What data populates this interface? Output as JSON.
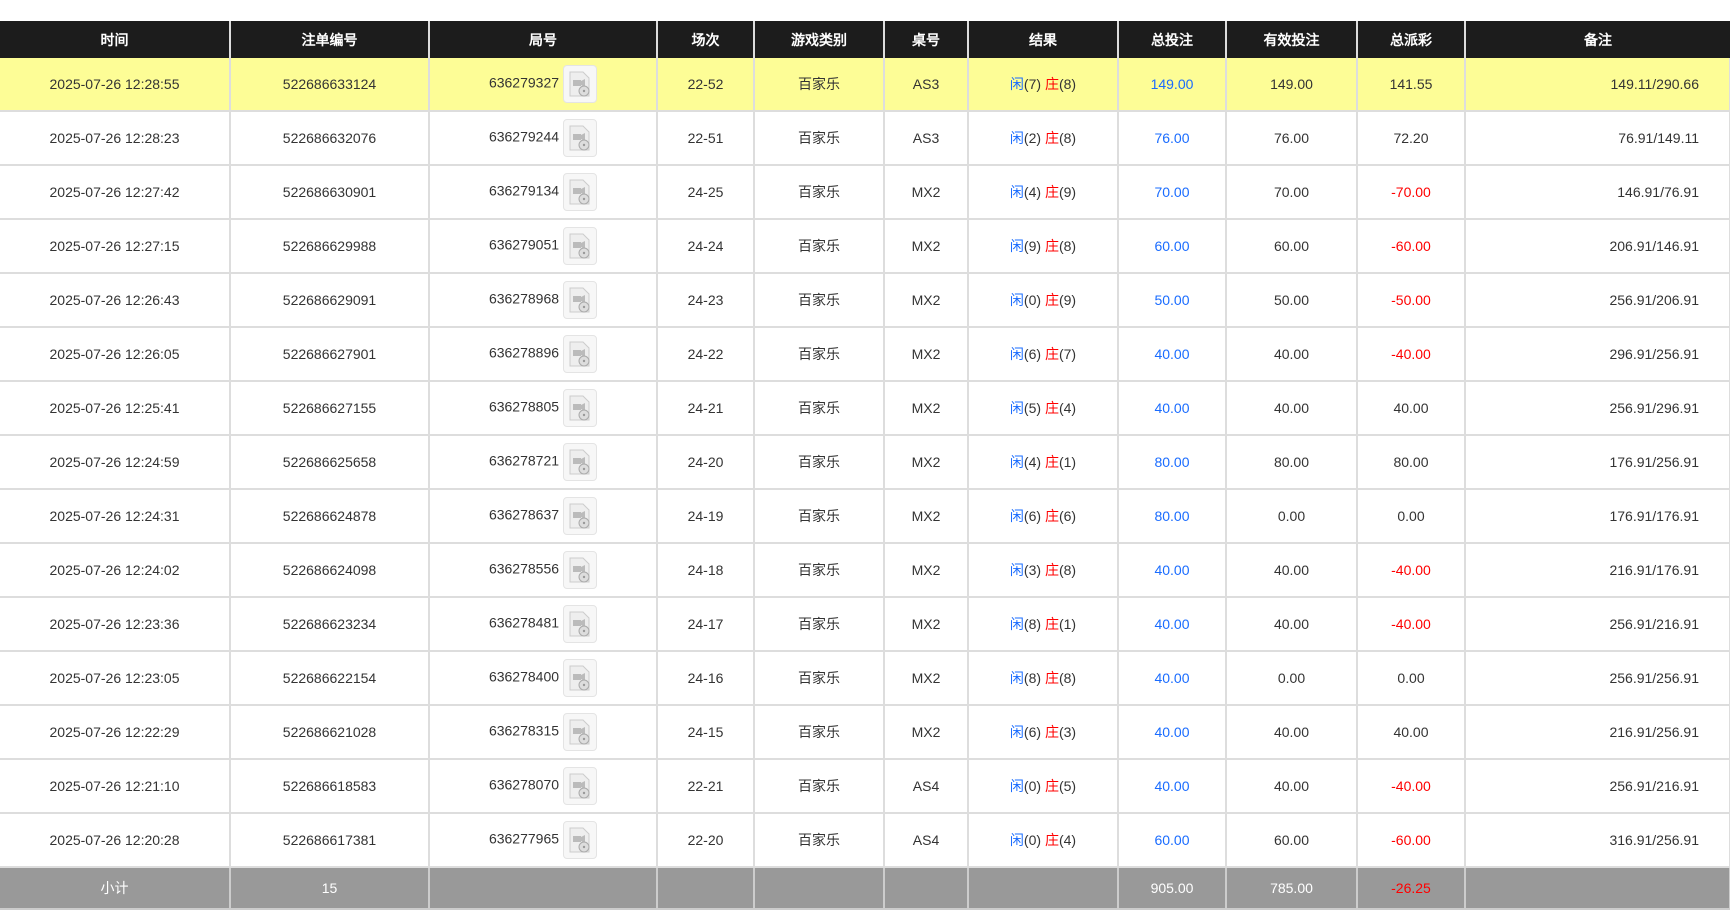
{
  "headers": [
    "时间",
    "注单编号",
    "局号",
    "场次",
    "游戏类别",
    "桌号",
    "结果",
    "总投注",
    "有效投注",
    "总派彩",
    "备注"
  ],
  "colors": {
    "header_bg": "#1c1c1c",
    "highlight_row": "#fdfd96",
    "blue": "#1a6cff",
    "red": "#ff0000",
    "subtotal_bg": "#999999"
  },
  "result_labels": {
    "player": "闲",
    "banker": "庄"
  },
  "rows": [
    {
      "time": "2025-07-26 12:28:55",
      "bet_id": "522686633124",
      "round": "636279327",
      "shoe": "22-52",
      "game": "百家乐",
      "table": "AS3",
      "player": "(7)",
      "banker": "(8)",
      "total_bet": "149.00",
      "valid_bet": "149.00",
      "payout": "141.55",
      "payout_negative": false,
      "note": "149.11/290.66",
      "highlighted": true
    },
    {
      "time": "2025-07-26 12:28:23",
      "bet_id": "522686632076",
      "round": "636279244",
      "shoe": "22-51",
      "game": "百家乐",
      "table": "AS3",
      "player": "(2)",
      "banker": "(8)",
      "total_bet": "76.00",
      "valid_bet": "76.00",
      "payout": "72.20",
      "payout_negative": false,
      "note": "76.91/149.11"
    },
    {
      "time": "2025-07-26 12:27:42",
      "bet_id": "522686630901",
      "round": "636279134",
      "shoe": "24-25",
      "game": "百家乐",
      "table": "MX2",
      "player": "(4)",
      "banker": "(9)",
      "total_bet": "70.00",
      "valid_bet": "70.00",
      "payout": "-70.00",
      "payout_negative": true,
      "note": "146.91/76.91"
    },
    {
      "time": "2025-07-26 12:27:15",
      "bet_id": "522686629988",
      "round": "636279051",
      "shoe": "24-24",
      "game": "百家乐",
      "table": "MX2",
      "player": "(9)",
      "banker": "(8)",
      "total_bet": "60.00",
      "valid_bet": "60.00",
      "payout": "-60.00",
      "payout_negative": true,
      "note": "206.91/146.91"
    },
    {
      "time": "2025-07-26 12:26:43",
      "bet_id": "522686629091",
      "round": "636278968",
      "shoe": "24-23",
      "game": "百家乐",
      "table": "MX2",
      "player": "(0)",
      "banker": "(9)",
      "total_bet": "50.00",
      "valid_bet": "50.00",
      "payout": "-50.00",
      "payout_negative": true,
      "note": "256.91/206.91"
    },
    {
      "time": "2025-07-26 12:26:05",
      "bet_id": "522686627901",
      "round": "636278896",
      "shoe": "24-22",
      "game": "百家乐",
      "table": "MX2",
      "player": "(6)",
      "banker": "(7)",
      "total_bet": "40.00",
      "valid_bet": "40.00",
      "payout": "-40.00",
      "payout_negative": true,
      "note": "296.91/256.91"
    },
    {
      "time": "2025-07-26 12:25:41",
      "bet_id": "522686627155",
      "round": "636278805",
      "shoe": "24-21",
      "game": "百家乐",
      "table": "MX2",
      "player": "(5)",
      "banker": "(4)",
      "total_bet": "40.00",
      "valid_bet": "40.00",
      "payout": "40.00",
      "payout_negative": false,
      "note": "256.91/296.91"
    },
    {
      "time": "2025-07-26 12:24:59",
      "bet_id": "522686625658",
      "round": "636278721",
      "shoe": "24-20",
      "game": "百家乐",
      "table": "MX2",
      "player": "(4)",
      "banker": "(1)",
      "total_bet": "80.00",
      "valid_bet": "80.00",
      "payout": "80.00",
      "payout_negative": false,
      "note": "176.91/256.91"
    },
    {
      "time": "2025-07-26 12:24:31",
      "bet_id": "522686624878",
      "round": "636278637",
      "shoe": "24-19",
      "game": "百家乐",
      "table": "MX2",
      "player": "(6)",
      "banker": "(6)",
      "total_bet": "80.00",
      "valid_bet": "0.00",
      "payout": "0.00",
      "payout_negative": false,
      "note": "176.91/176.91"
    },
    {
      "time": "2025-07-26 12:24:02",
      "bet_id": "522686624098",
      "round": "636278556",
      "shoe": "24-18",
      "game": "百家乐",
      "table": "MX2",
      "player": "(3)",
      "banker": "(8)",
      "total_bet": "40.00",
      "valid_bet": "40.00",
      "payout": "-40.00",
      "payout_negative": true,
      "note": "216.91/176.91"
    },
    {
      "time": "2025-07-26 12:23:36",
      "bet_id": "522686623234",
      "round": "636278481",
      "shoe": "24-17",
      "game": "百家乐",
      "table": "MX2",
      "player": "(8)",
      "banker": "(1)",
      "total_bet": "40.00",
      "valid_bet": "40.00",
      "payout": "-40.00",
      "payout_negative": true,
      "note": "256.91/216.91"
    },
    {
      "time": "2025-07-26 12:23:05",
      "bet_id": "522686622154",
      "round": "636278400",
      "shoe": "24-16",
      "game": "百家乐",
      "table": "MX2",
      "player": "(8)",
      "banker": "(8)",
      "total_bet": "40.00",
      "valid_bet": "0.00",
      "payout": "0.00",
      "payout_negative": false,
      "note": "256.91/256.91"
    },
    {
      "time": "2025-07-26 12:22:29",
      "bet_id": "522686621028",
      "round": "636278315",
      "shoe": "24-15",
      "game": "百家乐",
      "table": "MX2",
      "player": "(6)",
      "banker": "(3)",
      "total_bet": "40.00",
      "valid_bet": "40.00",
      "payout": "40.00",
      "payout_negative": false,
      "note": "216.91/256.91"
    },
    {
      "time": "2025-07-26 12:21:10",
      "bet_id": "522686618583",
      "round": "636278070",
      "shoe": "22-21",
      "game": "百家乐",
      "table": "AS4",
      "player": "(0)",
      "banker": "(5)",
      "total_bet": "40.00",
      "valid_bet": "40.00",
      "payout": "-40.00",
      "payout_negative": true,
      "note": "256.91/216.91"
    },
    {
      "time": "2025-07-26 12:20:28",
      "bet_id": "522686617381",
      "round": "636277965",
      "shoe": "22-20",
      "game": "百家乐",
      "table": "AS4",
      "player": "(0)",
      "banker": "(4)",
      "total_bet": "60.00",
      "valid_bet": "60.00",
      "payout": "-60.00",
      "payout_negative": true,
      "note": "316.91/256.91"
    }
  ],
  "subtotal": {
    "label": "小计",
    "count": "15",
    "total_bet": "905.00",
    "valid_bet": "785.00",
    "payout": "-26.25"
  }
}
